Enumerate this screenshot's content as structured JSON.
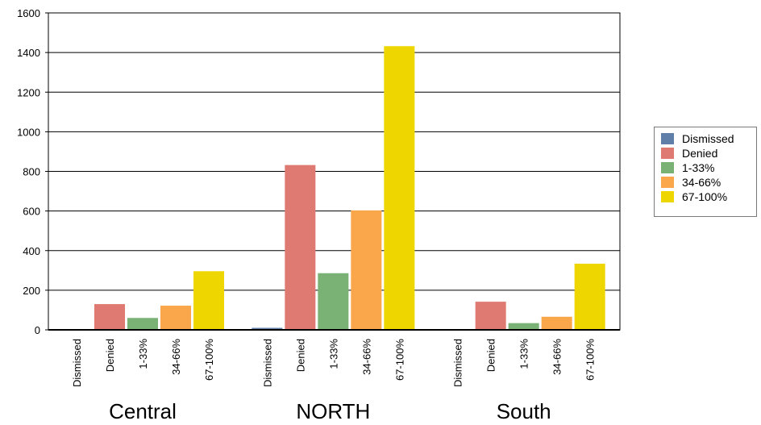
{
  "colors": {
    "Dismissed": "#5f7ea8",
    "Denied": "#df7a72",
    "1-33%": "#7ab174",
    "34-66%": "#faa74b",
    "67-100%": "#eed600"
  },
  "chart_data": {
    "type": "bar",
    "title": "",
    "xlabel": "",
    "ylabel": "",
    "ylim": [
      0,
      1600
    ],
    "yticks": [
      0,
      200,
      400,
      600,
      800,
      1000,
      1200,
      1400,
      1600
    ],
    "grid": "horizontal",
    "legend_position": "right",
    "legend": [
      "Dismissed",
      "Denied",
      "1-33%",
      "34-66%",
      "67-100%"
    ],
    "categories": [
      "Dismissed",
      "Denied",
      "1-33%",
      "34-66%",
      "67-100%"
    ],
    "groups": [
      {
        "name": "Central",
        "values": [
          3,
          130,
          60,
          122,
          296
        ]
      },
      {
        "name": "NORTH",
        "values": [
          10,
          832,
          286,
          603,
          1432
        ]
      },
      {
        "name": "South",
        "values": [
          0,
          142,
          34,
          66,
          334
        ]
      }
    ]
  }
}
